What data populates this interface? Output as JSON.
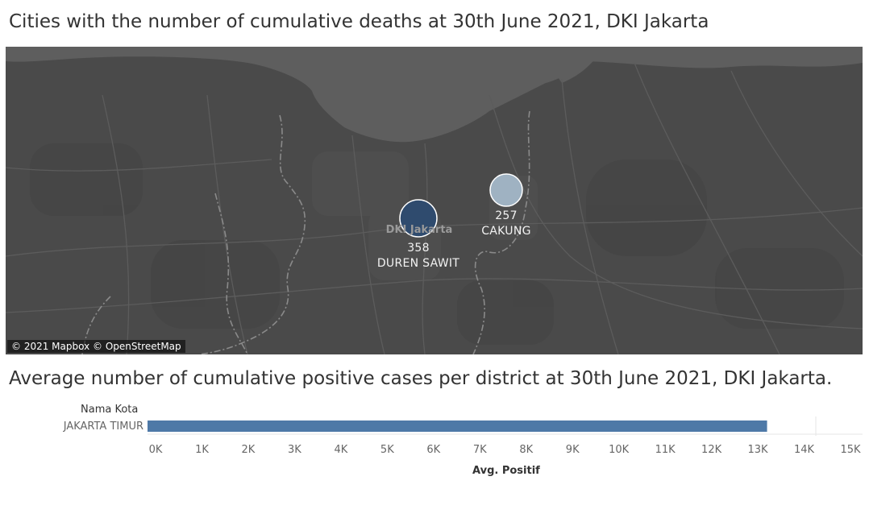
{
  "map_section": {
    "title": "Cities with the number of cumulative deaths at 30th June 2021, DKI Jakarta",
    "attribution": "© 2021 Mapbox © OpenStreetMap",
    "region_label": "DKI Jakarta",
    "colors": {
      "background": "#4a4a4a",
      "sea": "#5a5a5a",
      "dark_marker": "#2f4b6e",
      "light_marker": "#9fb2c2"
    },
    "markers": [
      {
        "district": "DUREN SAWIT",
        "deaths": "358",
        "color": "#2f4b6e"
      },
      {
        "district": "CAKUNG",
        "deaths": "257",
        "color": "#9fb2c2"
      }
    ]
  },
  "chart_section": {
    "title": "Average number of cumulative positive cases per district at 30th June 2021, DKI Jakarta.",
    "dimension_header": "Nama Kota",
    "axis_title": "Avg. Positif"
  },
  "chart_data": {
    "type": "bar",
    "orientation": "horizontal",
    "categories": [
      "JAKARTA TIMUR"
    ],
    "values": [
      13200
    ],
    "xlim": [
      0,
      15000
    ],
    "ticks": [
      "0K",
      "1K",
      "2K",
      "3K",
      "4K",
      "5K",
      "6K",
      "7K",
      "8K",
      "9K",
      "10K",
      "11K",
      "12K",
      "13K",
      "14K",
      "15K"
    ],
    "bar_color": "#4e79a7",
    "xlabel": "Avg. Positif"
  }
}
